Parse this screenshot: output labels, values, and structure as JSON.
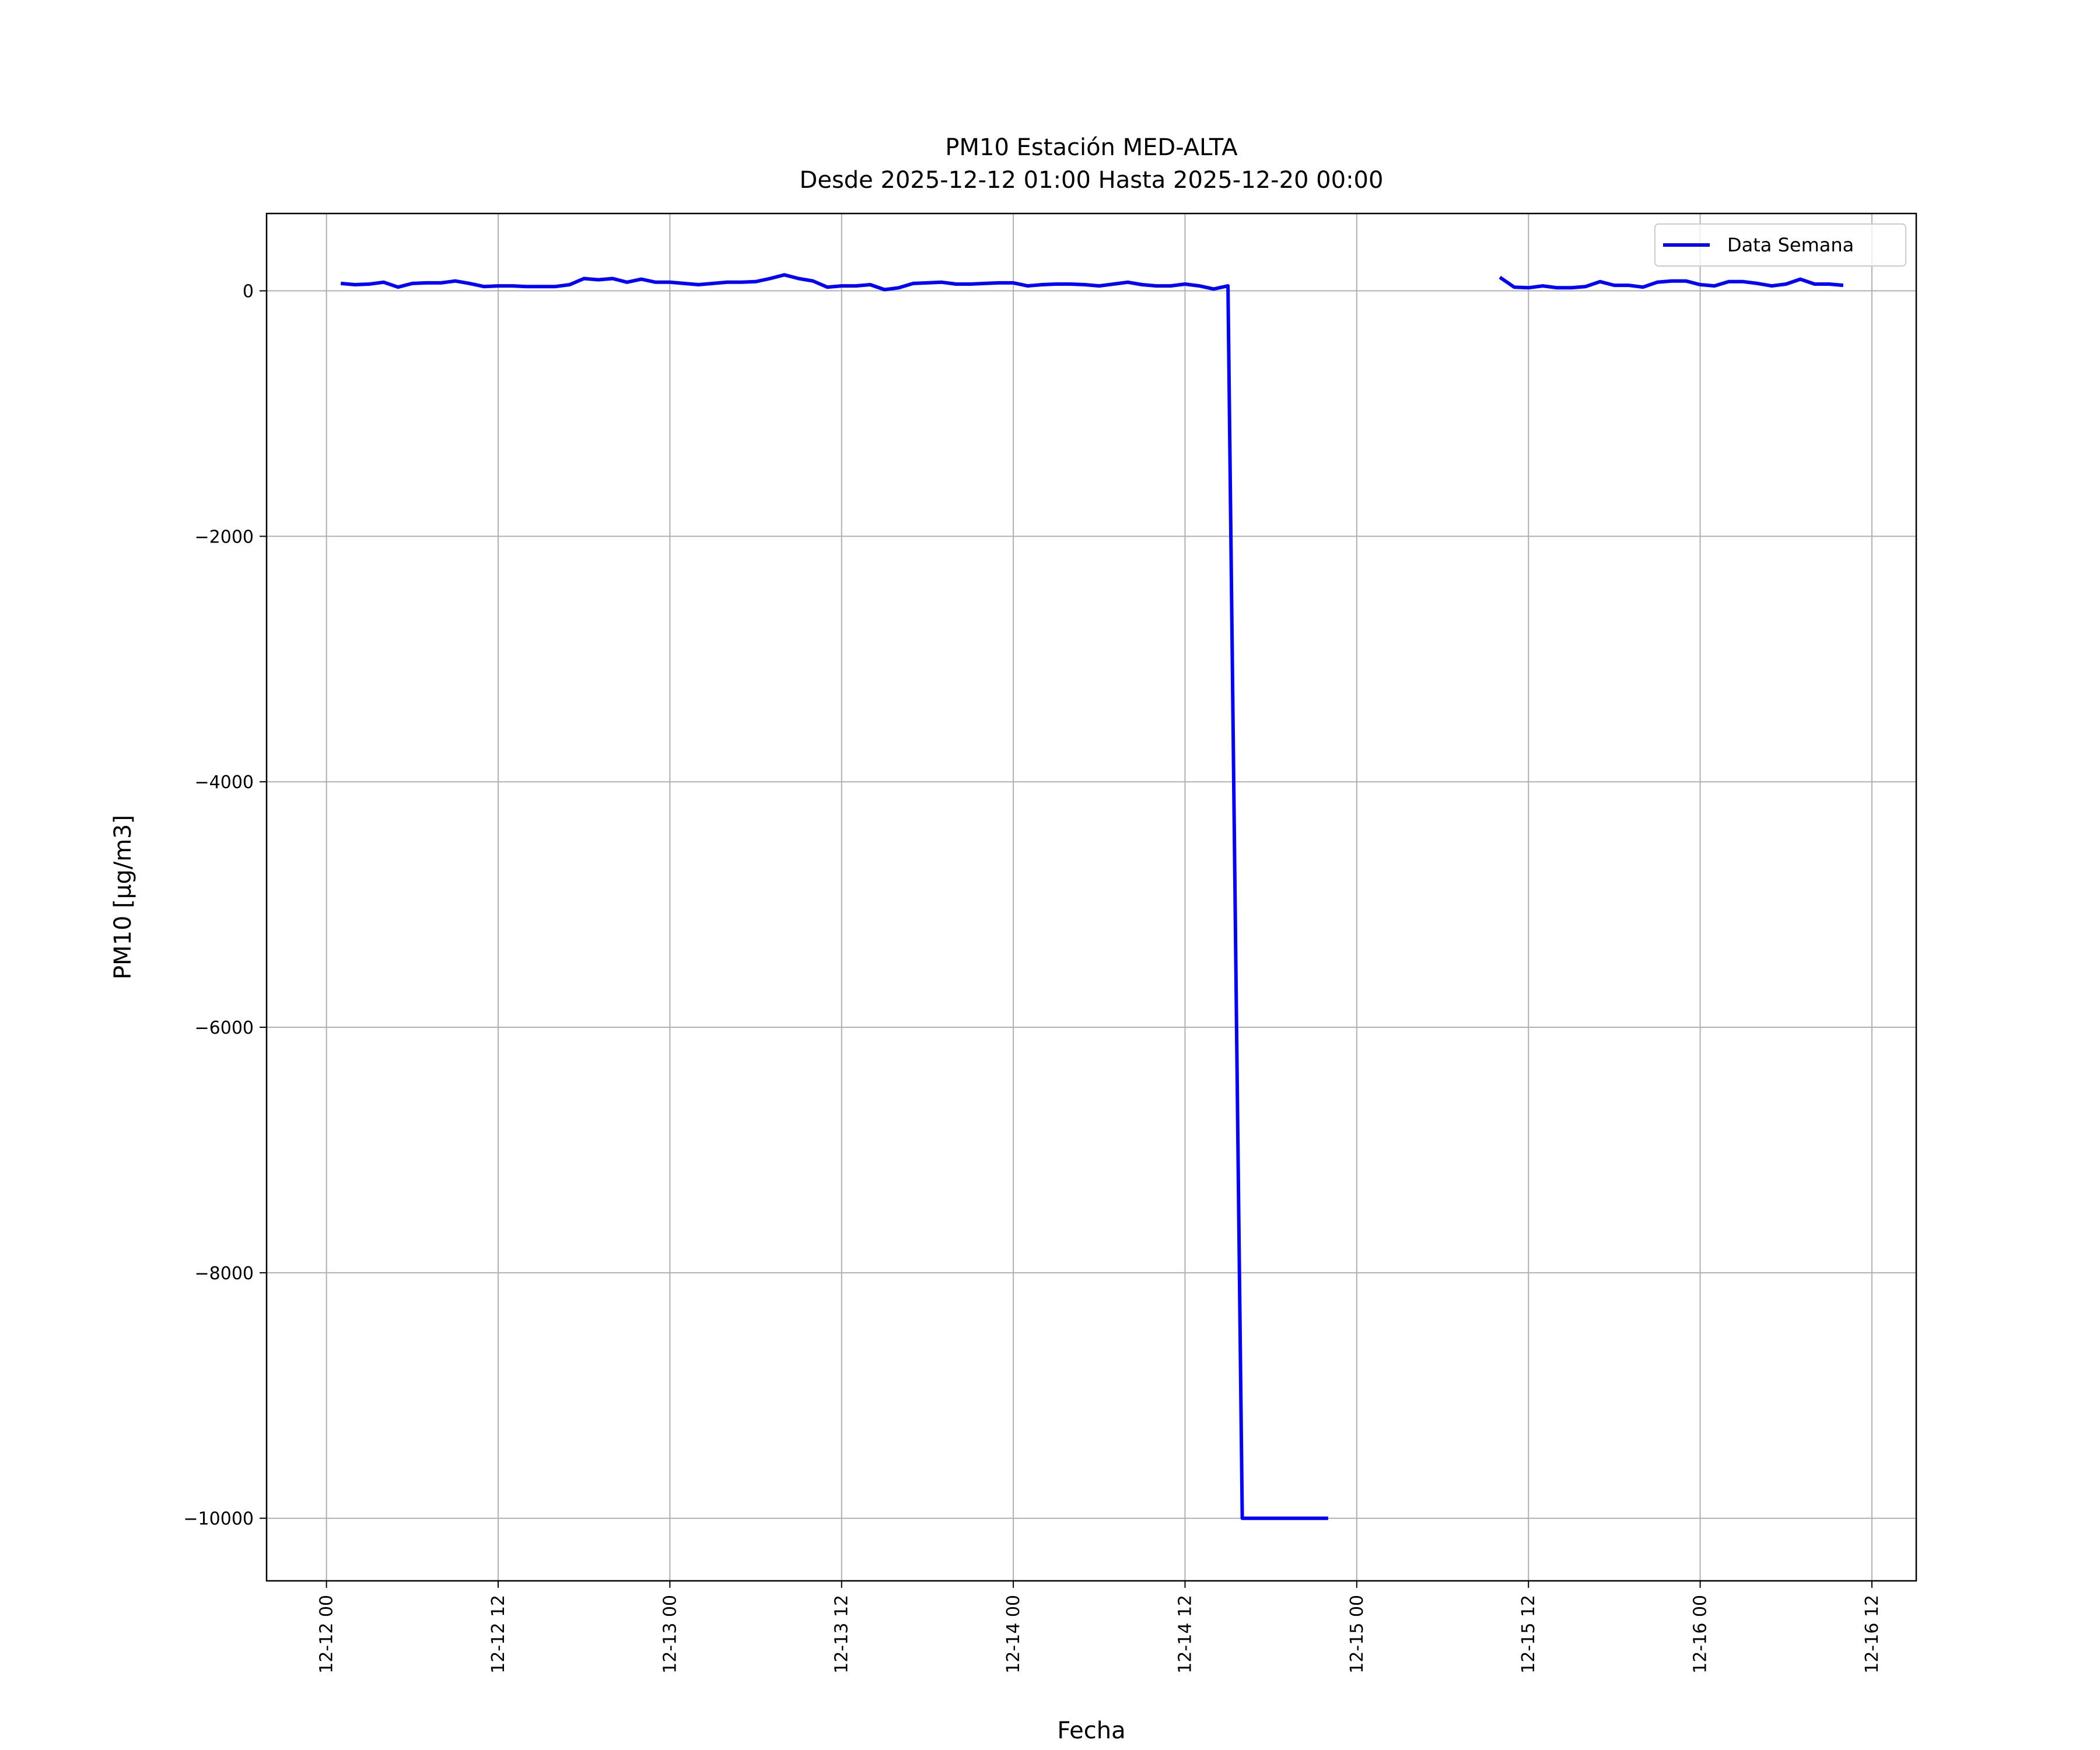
{
  "chart_data": {
    "type": "line",
    "title": "PM10 Estación MED-ALTA",
    "subtitle": "Desde 2025-12-12 01:00 Hasta 2025-12-20 00:00",
    "xlabel": "Fecha",
    "ylabel": "PM10 [μg/m3]",
    "x": [
      "12-12 01",
      "12-12 02",
      "12-12 03",
      "12-12 04",
      "12-12 05",
      "12-12 06",
      "12-12 07",
      "12-12 08",
      "12-12 09",
      "12-12 10",
      "12-12 11",
      "12-12 12",
      "12-12 13",
      "12-12 14",
      "12-12 15",
      "12-12 16",
      "12-12 17",
      "12-12 18",
      "12-12 19",
      "12-12 20",
      "12-12 21",
      "12-12 22",
      "12-12 23",
      "12-13 00",
      "12-13 01",
      "12-13 02",
      "12-13 03",
      "12-13 04",
      "12-13 05",
      "12-13 06",
      "12-13 07",
      "12-13 08",
      "12-13 09",
      "12-13 10",
      "12-13 11",
      "12-13 12",
      "12-13 13",
      "12-13 14",
      "12-13 15",
      "12-13 16",
      "12-13 17",
      "12-13 18",
      "12-13 19",
      "12-13 20",
      "12-13 21",
      "12-13 22",
      "12-13 23",
      "12-14 00",
      "12-14 01",
      "12-14 02",
      "12-14 03",
      "12-14 04",
      "12-14 05",
      "12-14 06",
      "12-14 07",
      "12-14 08",
      "12-14 09",
      "12-14 10",
      "12-14 11",
      "12-14 12",
      "12-14 13",
      "12-14 14",
      "12-14 15",
      "12-14 16",
      "12-14 17",
      "12-14 18",
      "12-14 19",
      "12-14 20",
      "12-14 21",
      "12-14 22",
      "12-14 23",
      "12-15 00",
      "12-15 01",
      "12-15 02",
      "12-15 03",
      "12-15 04",
      "12-15 05",
      "12-15 06",
      "12-15 07",
      "12-15 08",
      "12-15 09",
      "12-15 10",
      "12-15 11",
      "12-15 12",
      "12-15 13",
      "12-15 14",
      "12-15 15",
      "12-15 16",
      "12-15 17",
      "12-15 18",
      "12-15 19",
      "12-15 20",
      "12-15 21",
      "12-15 22",
      "12-15 23",
      "12-16 00",
      "12-16 01",
      "12-16 02",
      "12-16 03",
      "12-16 04",
      "12-16 05",
      "12-16 06",
      "12-16 07",
      "12-16 08",
      "12-16 09",
      "12-16 10"
    ],
    "series": [
      {
        "name": "Data Semana",
        "color": "#0000ff",
        "values": [
          60,
          50,
          55,
          70,
          30,
          60,
          65,
          65,
          80,
          60,
          35,
          40,
          40,
          35,
          35,
          35,
          50,
          100,
          90,
          100,
          70,
          95,
          70,
          70,
          60,
          50,
          60,
          70,
          70,
          75,
          100,
          130,
          100,
          80,
          30,
          40,
          40,
          50,
          10,
          25,
          60,
          65,
          70,
          55,
          55,
          60,
          65,
          65,
          40,
          50,
          55,
          55,
          50,
          40,
          55,
          70,
          50,
          40,
          40,
          55,
          40,
          15,
          40,
          -10000,
          -10000,
          -10000,
          -10000,
          -10000,
          -10000,
          -10000,
          null,
          null,
          null,
          null,
          null,
          null,
          null,
          null,
          null,
          null,
          null,
          110,
          30,
          25,
          40,
          25,
          25,
          35,
          75,
          45,
          45,
          30,
          70,
          80,
          80,
          50,
          40,
          75,
          75,
          60,
          40,
          55,
          95,
          55,
          55,
          45
        ]
      }
    ],
    "xlim": [
      "12-11 19:49",
      "12-16 15:06"
    ],
    "xticks": [
      "12-12 00",
      "12-12 12",
      "12-13 00",
      "12-13 12",
      "12-14 00",
      "12-14 12",
      "12-15 00",
      "12-15 12",
      "12-16 00",
      "12-16 12"
    ],
    "ylim": [
      -10510,
      630
    ],
    "yticks": [
      {
        "value": -10000,
        "label": "−10000"
      },
      {
        "value": -8000,
        "label": "−8000"
      },
      {
        "value": -6000,
        "label": "−6000"
      },
      {
        "value": -4000,
        "label": "−4000"
      },
      {
        "value": -2000,
        "label": "−2000"
      },
      0
    ],
    "grid": true,
    "legend": "upper right"
  }
}
